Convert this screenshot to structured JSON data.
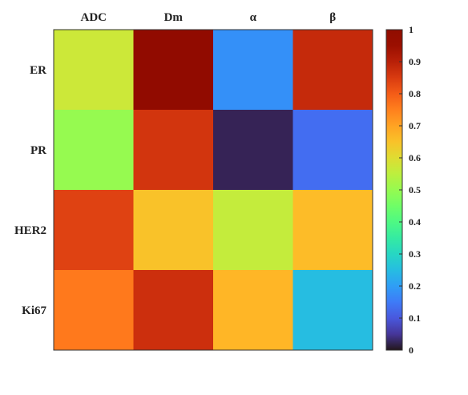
{
  "chart_data": {
    "type": "heatmap",
    "title": "",
    "xlabel": "",
    "ylabel": "",
    "x_categories": [
      "ADC",
      "Dm",
      "α",
      "β"
    ],
    "y_categories": [
      "ER",
      "PR",
      "HER2",
      "Ki67"
    ],
    "values": [
      [
        0.57,
        0.98,
        0.18,
        0.88
      ],
      [
        0.5,
        0.86,
        0.02,
        0.13
      ],
      [
        0.84,
        0.65,
        0.56,
        0.66
      ],
      [
        0.76,
        0.87,
        0.67,
        0.25
      ]
    ],
    "colorbar": {
      "colormap": "turbo",
      "range": [
        0,
        1
      ],
      "ticks": [
        "0",
        "0.1",
        "0.2",
        "0.3",
        "0.4",
        "0.5",
        "0.6",
        "0.7",
        "0.8",
        "0.9",
        "1"
      ],
      "placement": "right"
    },
    "grid": false
  }
}
